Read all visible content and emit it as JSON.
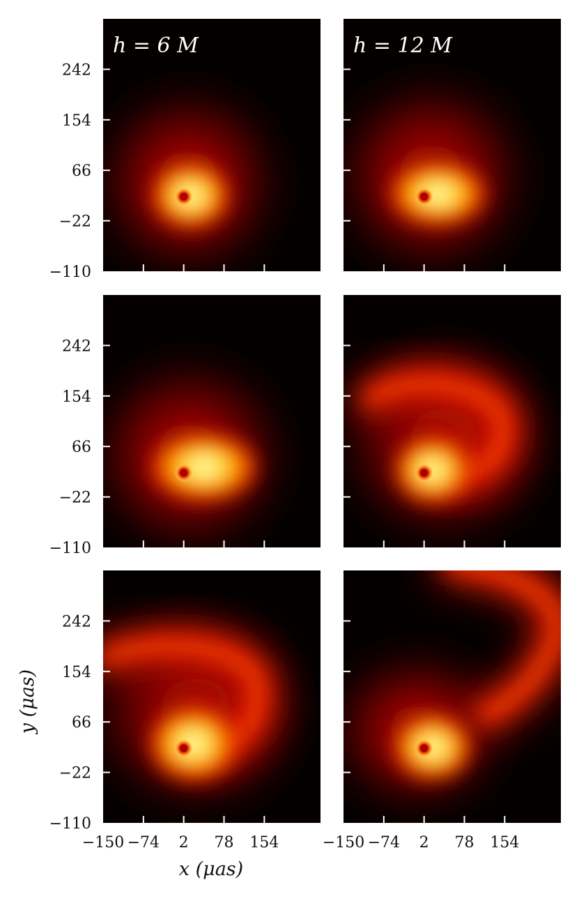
{
  "chart_data": {
    "type": "heatmap",
    "layout": {
      "rows": 3,
      "cols": 2
    },
    "xlabel": "x (μas)",
    "ylabel": "y (μas)",
    "xlim": [
      -150,
      260
    ],
    "ylim": [
      -110,
      330
    ],
    "xticks": [
      "−150",
      "−74",
      "2",
      "78",
      "154"
    ],
    "yticks": [
      "−110",
      "−22",
      "66",
      "154",
      "242"
    ],
    "xtick_values": [
      -150,
      -74,
      2,
      78,
      154
    ],
    "ytick_values": [
      -110,
      -22,
      66,
      154,
      242
    ],
    "colormap": [
      "#050000",
      "#3a0000",
      "#8a0500",
      "#d61a00",
      "#ff5a00",
      "#ff9a00",
      "#ffd000",
      "#ffffb0"
    ],
    "panels": [
      {
        "row": 0,
        "col": 0,
        "label": "h = 6 M"
      },
      {
        "row": 0,
        "col": 1,
        "label": "h = 12 M"
      },
      {
        "row": 1,
        "col": 0,
        "label": ""
      },
      {
        "row": 1,
        "col": 1,
        "label": ""
      },
      {
        "row": 2,
        "col": 0,
        "label": ""
      },
      {
        "row": 2,
        "col": 1,
        "label": ""
      }
    ]
  }
}
